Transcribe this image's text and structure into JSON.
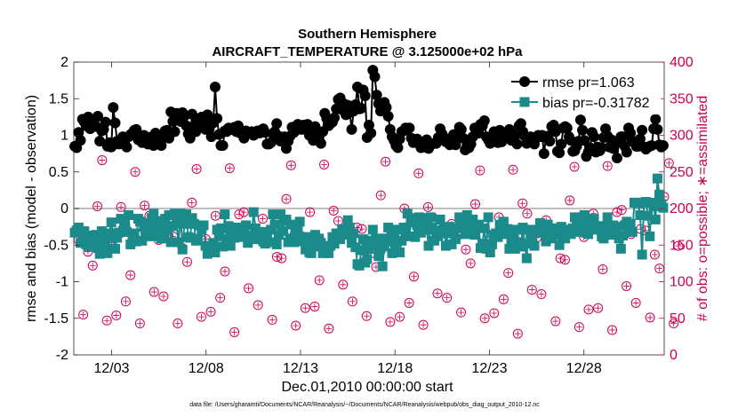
{
  "chart_data": {
    "type": "line",
    "title_line1": "Southern Hemisphere",
    "title_line2": "AIRCRAFT_TEMPERATURE @ 3.125000e+02 hPa",
    "xlabel": "Dec.01,2010 00:00:00 start",
    "ylabel_left": "rmse and bias (model - observation)",
    "ylabel_right": "# of obs: o=possible; ∗=assimilated",
    "footer": "data file: /Users/gharamti/Documents/NCAR/Reanalysis/~/Documents/NCAR/Reanalysis/webpub/obs_diag_output_2010-12.nc",
    "xlim": [
      1.0,
      32.25
    ],
    "ylim_left": [
      -2,
      2
    ],
    "ylim_right": [
      0,
      400
    ],
    "x_ticks": [
      3,
      8,
      13,
      18,
      23,
      28
    ],
    "x_tick_labels": [
      "12/03",
      "12/08",
      "12/13",
      "12/18",
      "12/23",
      "12/28"
    ],
    "y_ticks_left": [
      "-2",
      "-1.5",
      "-1",
      "-0.5",
      "0",
      "0.5",
      "1",
      "1.5",
      "2"
    ],
    "y_ticks_right": [
      "0",
      "50",
      "100",
      "150",
      "200",
      "250",
      "300",
      "350",
      "400"
    ],
    "colors": {
      "rmse": "#000000",
      "bias": "#1a8a8a",
      "obs": "#cc0055",
      "zero_line": "#bfbfbf"
    },
    "legend": [
      {
        "name": "rmse pr=1.063",
        "marker": "circle"
      },
      {
        "name": "bias pr=-0.31782",
        "marker": "square"
      }
    ],
    "series": [
      {
        "name": "rmse",
        "values": [
          0.85,
          0.83,
          1.04,
          0.93,
          1.22,
          1.18,
          1.13,
          1.25,
          1.09,
          1.13,
          1.16,
          1.12,
          1.26,
          0.92,
          1.06,
          1.08,
          1.18,
          0.85,
          0.9,
          0.84,
          1.38,
          1.17,
          0.92,
          0.88,
          0.93,
          0.98,
          0.88,
          0.84,
          0.98,
          1.01,
          1.03,
          1.07,
          1.08,
          0.94,
          0.94,
          0.9,
          1.0,
          0.92,
          0.88,
          0.88,
          0.98,
          0.86,
          1.03,
          0.96,
          0.91,
          0.86,
          0.97,
          1.06,
          1.07,
          0.96,
          1.32,
          1.19,
          1.05,
          1.3,
          1.26,
          1.19,
          1.31,
          1.26,
          1.13,
          1.02,
          0.96,
          1.29,
          1.12,
          1.05,
          1.18,
          1.12,
          1.25,
          1.2,
          1.08,
          1.28,
          1.09,
          0.98,
          1.17,
          1.66,
          1.23,
          1.01,
          0.86,
          0.86,
          1.06,
          1.05,
          1.1,
          1.08,
          1.08,
          1.11,
          1.05,
          1.13,
          1.03,
          1.02,
          0.96,
          1.06,
          1.03,
          1.04,
          1.05,
          1.0,
          1.04,
          1.06,
          1.03,
          1.04,
          1.09,
          1.04,
          0.88,
          0.88,
          0.9,
          1.02,
          1.05,
          1.16,
          0.99,
          0.92,
          0.94,
          0.98,
          0.82,
          0.92,
          0.99,
          1.11,
          1.04,
          1.07,
          1.15,
          1.13,
          1.08,
          1.14,
          1.08,
          1.15,
          1.0,
          1.04,
          0.93,
          1.12,
          1.01,
          0.97,
          0.89,
          1.05,
          1.3,
          1.23,
          1.13,
          1.16,
          1.18,
          1.24,
          1.36,
          1.49,
          1.51,
          1.35,
          1.43,
          1.28,
          1.41,
          1.31,
          1.08,
          1.33,
          1.42,
          1.66,
          1.36,
          1.37,
          1.62,
          1.54,
          0.97,
          1.14,
          1.03,
          1.89,
          1.8,
          1.55,
          1.43,
          1.33,
          1.41,
          1.45,
          1.38,
          1.26,
          1.08,
          0.98,
          0.93,
          0.86,
          0.83,
          0.95,
          1.05,
          1.06,
          1.1,
          1.08,
          1.1,
          0.96,
          0.9,
          0.92,
          0.95,
          0.9,
          0.83,
          0.85,
          0.84,
          0.94,
          0.82,
          0.88,
          0.88,
          0.89,
          0.89,
          0.97,
          1.09,
          1.02,
          0.93,
          0.91,
          0.95,
          0.87,
          0.97,
          1.01,
          0.87,
          0.98,
          1.11,
          1.08,
          0.96,
          0.8,
          0.87,
          0.83,
          0.88,
          0.98,
          1.1,
          1.07,
          1.03,
          1.15,
          1.13,
          1.2,
          0.98,
          0.94,
          0.89,
          0.98,
          1.05,
          1.03,
          0.9,
          1.07,
          0.91,
          1.02,
          1.01,
          0.98,
          1.08,
          0.93,
          1.01,
          0.99,
          0.88,
          1.13,
          1.16,
          1.05,
          0.99,
          0.89,
          0.94,
          0.98,
          0.91,
          0.88,
          0.97,
          1.0,
          0.98,
          1.0,
          0.75,
          0.97,
          0.99,
          0.92,
          1.12,
          1.14,
          1.05,
          0.78,
          0.76,
          0.88,
          1.1,
          1.12,
          1.1,
          0.98,
          0.93,
          0.78,
          0.79,
          0.85,
          0.92,
          1.21,
          1.07,
          0.93,
          0.71,
          0.77,
          0.83,
          1.04,
          0.98,
          0.77,
          0.84,
          0.79,
          0.83,
          0.97,
          1.09,
          0.99,
          0.84,
          0.94,
          0.82,
          0.88,
          0.69,
          0.91,
          0.98,
          0.98,
          0.85,
          0.77,
          1.1,
          1.03,
          0.92,
          0.9,
          0.85,
          0.85,
          0.95,
          1.07,
          0.84,
          0.81,
          0.84,
          0.85,
          0.86,
          1.09,
          1.22,
          1.08,
          0.87,
          0.84,
          0.86
        ]
      },
      {
        "name": "bias",
        "values": [
          -0.33,
          -0.3,
          -0.26,
          -0.47,
          -0.44,
          -0.31,
          -0.49,
          -0.52,
          -0.37,
          -0.44,
          -0.47,
          -0.36,
          -0.54,
          -0.62,
          -0.31,
          -0.44,
          -0.52,
          -0.61,
          -0.34,
          -0.19,
          -0.39,
          -0.55,
          -0.4,
          -0.33,
          -0.14,
          -0.31,
          -0.21,
          -0.32,
          -0.09,
          -0.49,
          -0.37,
          -0.34,
          -0.45,
          -0.14,
          -0.18,
          -0.44,
          -0.25,
          -0.38,
          -0.21,
          -0.3,
          -0.13,
          -0.07,
          -0.38,
          -0.25,
          -0.17,
          -0.41,
          -0.37,
          -0.14,
          -0.29,
          -0.09,
          -0.46,
          -0.24,
          -0.07,
          -0.2,
          -0.46,
          -0.07,
          -0.56,
          -0.21,
          -0.08,
          -0.39,
          -0.4,
          -0.13,
          -0.21,
          -0.44,
          -0.42,
          -0.23,
          -0.29,
          -0.23,
          -0.51,
          -0.62,
          -0.52,
          -0.58,
          -0.47,
          -0.6,
          -0.29,
          -0.38,
          -0.27,
          -0.52,
          -0.08,
          -0.42,
          -0.24,
          -0.51,
          -0.33,
          -0.4,
          -0.26,
          -0.33,
          -0.31,
          -0.39,
          -0.32,
          -0.23,
          -0.47,
          -0.37,
          -0.37,
          -0.05,
          -0.27,
          -0.42,
          -0.32,
          -0.32,
          -0.45,
          -0.48,
          -0.39,
          -0.46,
          -0.29,
          -0.08,
          -0.22,
          -0.49,
          -0.36,
          -0.08,
          -0.31,
          -0.17,
          -0.15,
          -0.46,
          -0.41,
          -0.22,
          -0.46,
          -0.36,
          -0.3,
          -0.18,
          -0.45,
          -0.39,
          -0.56,
          -0.39,
          -0.6,
          -0.61,
          -0.49,
          -0.36,
          -0.52,
          -0.41,
          -0.47,
          -0.61,
          -0.55,
          -0.52,
          -0.61,
          -0.51,
          -0.39,
          -0.48,
          -0.34,
          -0.35,
          -0.42,
          -0.28,
          -0.32,
          -0.36,
          -0.16,
          -0.26,
          -0.47,
          -0.34,
          -0.53,
          -0.76,
          -0.78,
          -0.57,
          -0.42,
          -0.74,
          -0.69,
          -0.55,
          -0.44,
          -0.29,
          -0.51,
          -0.41,
          -0.65,
          -0.55,
          -0.79,
          -0.52,
          -0.41,
          -0.26,
          -0.45,
          -0.61,
          -0.39,
          -0.52,
          -0.29,
          -0.6,
          -0.44,
          -0.26,
          -0.34,
          -0.07,
          -0.38,
          -0.13,
          -0.19,
          -0.39,
          -0.23,
          -0.12,
          -0.33,
          -0.24,
          -0.13,
          -0.29,
          -0.51,
          -0.12,
          -0.26,
          -0.44,
          -0.33,
          -0.38,
          -0.15,
          -0.3,
          -0.26,
          -0.51,
          -0.34,
          -0.25,
          -0.49,
          -0.3,
          -0.42,
          -0.27,
          -0.12,
          -0.23,
          -0.17,
          -0.35,
          -0.09,
          -0.19,
          -0.27,
          -0.15,
          -0.36,
          -0.23,
          -0.22,
          -0.54,
          -0.48,
          -0.27,
          -0.55,
          -0.12,
          -0.6,
          -0.49,
          -0.36,
          -0.34,
          -0.39,
          -0.22,
          -0.29,
          -0.18,
          -0.35,
          -0.28,
          -0.55,
          -0.46,
          -0.33,
          -0.55,
          -0.29,
          -0.46,
          -0.52,
          -0.26,
          -0.48,
          -0.68,
          -0.29,
          -0.36,
          -0.46,
          -0.51,
          -0.29,
          -0.29,
          -0.2,
          -0.33,
          -0.31,
          -0.45,
          -0.22,
          -0.41,
          -0.39,
          -0.35,
          -0.27,
          -0.36,
          -0.5,
          -0.25,
          -0.29,
          -0.41,
          -0.32,
          -0.29,
          -0.35,
          -0.27,
          -0.12,
          -0.24,
          -0.18,
          -0.32,
          -0.22,
          -0.09,
          -0.17,
          -0.35,
          -0.18,
          -0.24,
          -0.14,
          -0.29,
          -0.24,
          -0.25,
          -0.38,
          -0.41,
          -0.25,
          -0.12,
          -0.23,
          -0.36,
          -0.23,
          -0.25,
          -0.35,
          -0.41,
          -0.55,
          -0.37,
          -0.23,
          -0.18,
          -0.3,
          -0.21,
          -0.32,
          0.08,
          0.08,
          0.07,
          -0.09,
          -0.63,
          0.08,
          0.09,
          -0.1,
          -0.38,
          0.08,
          0.03,
          -0.15,
          0.41,
          0.19,
          0.06,
          0.01
        ]
      }
    ]
  }
}
